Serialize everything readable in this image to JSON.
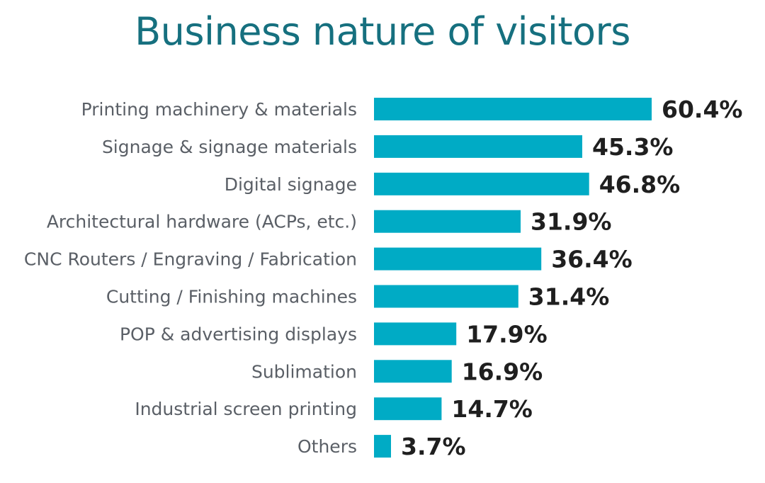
{
  "colors": {
    "bar": "#00abc5",
    "title": "#16707f",
    "category_text": "#5a5f66",
    "value_text": "#1f1f1f"
  },
  "chart_data": {
    "type": "bar",
    "orientation": "horizontal",
    "title": "Business nature of visitors",
    "categories": [
      "Printing machinery & materials",
      "Signage & signage materials",
      "Digital signage",
      "Architectural hardware (ACPs, etc.)",
      "CNC Routers / Engraving / Fabrication",
      "Cutting / Finishing machines",
      "POP & advertising displays",
      "Sublimation",
      "Industrial screen printing",
      "Others"
    ],
    "values": [
      60.4,
      45.3,
      46.8,
      31.9,
      36.4,
      31.4,
      17.9,
      16.9,
      14.7,
      3.7
    ],
    "value_labels": [
      "60.4%",
      "45.3%",
      "46.8%",
      "31.9%",
      "36.4%",
      "31.4%",
      "17.9%",
      "16.9%",
      "14.7%",
      "3.7%"
    ],
    "unit": "%",
    "xlim": [
      0,
      60.4
    ],
    "grid": false,
    "legend": "none"
  }
}
